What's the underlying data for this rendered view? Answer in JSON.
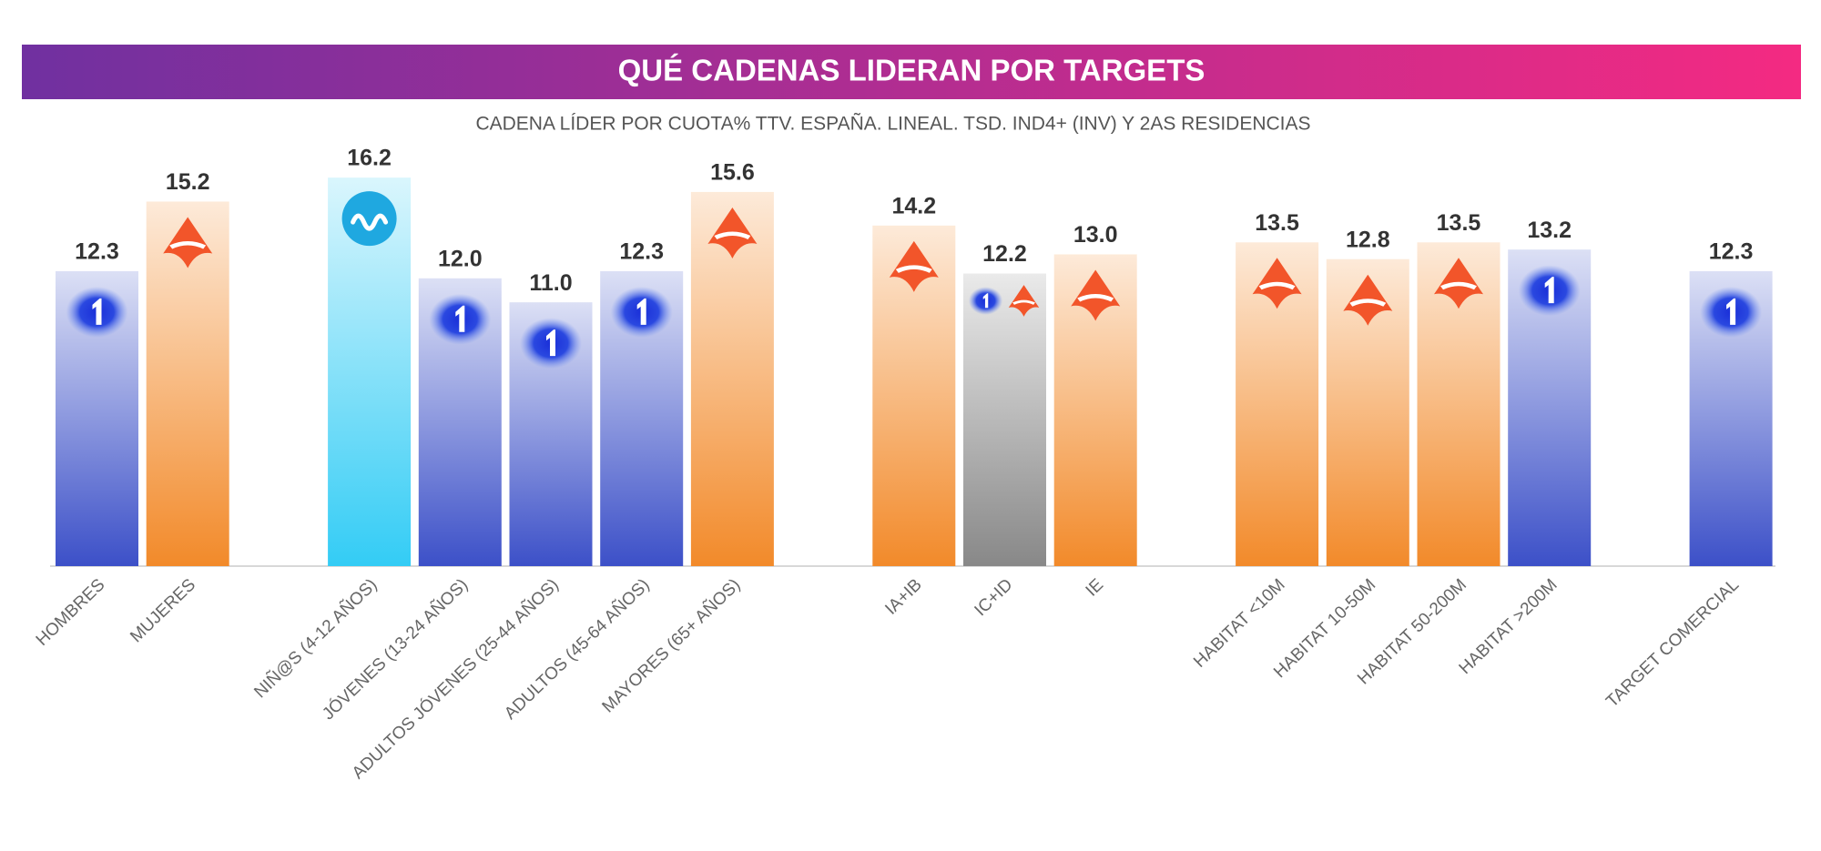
{
  "chart_data": {
    "type": "bar",
    "title": "QUÉ CADENAS LIDERAN POR TARGETS",
    "subtitle": "CADENA LÍDER POR CUOTA% TTV. ESPAÑA. LINEAL. TSD. IND4+ (INV) Y 2AS RESIDENCIAS",
    "categories": [
      "HOMBRES",
      "MUJERES",
      "NIÑ@S (4-12 AÑOS)",
      "JÓVENES (13-24 AÑOS)",
      "ADULTOS JÓVENES (25-44 AÑOS)",
      "ADULTOS (45-64 AÑOS)",
      "MAYORES (65+ AÑOS)",
      "IA+IB",
      "IC+ID",
      "IE",
      "HABITAT <10M",
      "HABITAT 10-50M",
      "HABITAT 50-200M",
      "HABITAT >200M",
      "TARGET COMERCIAL"
    ],
    "values": [
      12.3,
      15.2,
      16.2,
      12.0,
      11.0,
      12.3,
      15.6,
      14.2,
      12.2,
      13.0,
      13.5,
      12.8,
      13.5,
      13.2,
      12.3
    ],
    "value_labels": [
      "12.3",
      "15.2",
      "16.2",
      "12.0",
      "11.0",
      "12.3",
      "15.6",
      "14.2",
      "12.2",
      "13.0",
      "13.5",
      "12.8",
      "13.5",
      "13.2",
      "12.3"
    ],
    "colors": [
      "#3c50c8",
      "#f28a2a",
      "#33ccf5",
      "#3c50c8",
      "#3c50c8",
      "#3c50c8",
      "#f28a2a",
      "#f28a2a",
      "#888888",
      "#f28a2a",
      "#f28a2a",
      "#f28a2a",
      "#f28a2a",
      "#3c50c8",
      "#3c50c8"
    ],
    "ylim": [
      0,
      20
    ]
  }
}
